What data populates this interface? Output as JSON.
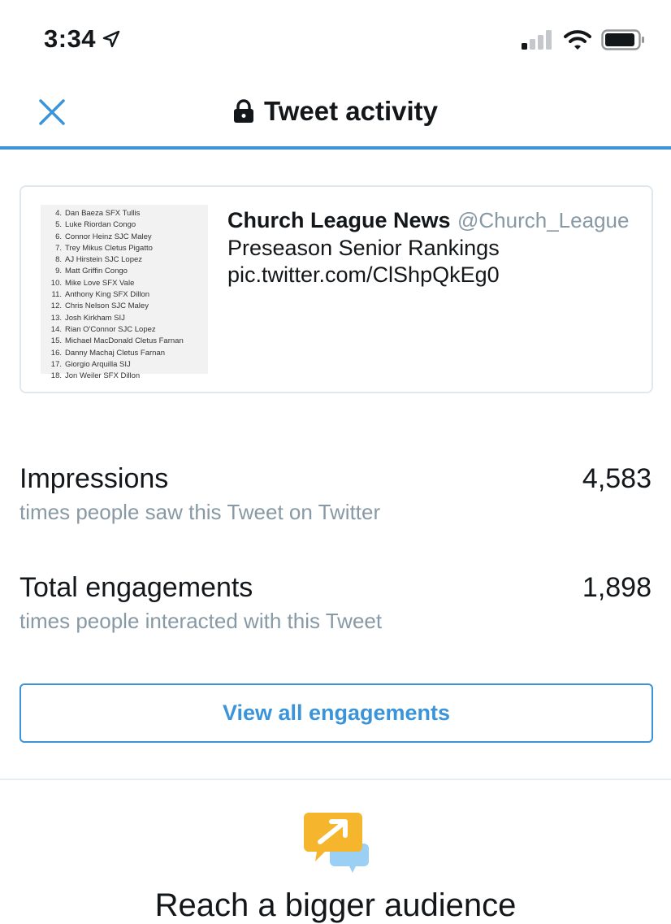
{
  "status_bar": {
    "time": "3:34"
  },
  "header": {
    "title": "Tweet activity"
  },
  "tweet": {
    "author": "Church League News",
    "handle": "@Church_League",
    "text_line1": "Preseason Senior Rankings",
    "text_line2": "pic.twitter.com/ClShpQkEg0",
    "thumbnail_rows": [
      {
        "num": "4.",
        "text": "Dan Baeza SFX Tullis"
      },
      {
        "num": "5.",
        "text": "Luke Riordan Congo"
      },
      {
        "num": "6.",
        "text": "Connor Heinz SJC Maley"
      },
      {
        "num": "7.",
        "text": "Trey Mikus Cletus Pigatto"
      },
      {
        "num": "8.",
        "text": "AJ Hirstein SJC Lopez"
      },
      {
        "num": "9.",
        "text": "Matt Griffin Congo"
      },
      {
        "num": "10.",
        "text": "Mike Love SFX Vale"
      },
      {
        "num": "11.",
        "text": "Anthony King SFX Dillon"
      },
      {
        "num": "12.",
        "text": "Chris Nelson SJC Maley"
      },
      {
        "num": "13.",
        "text": "Josh Kirkham SIJ"
      },
      {
        "num": "14.",
        "text": "Rian O'Connor SJC Lopez"
      },
      {
        "num": "15.",
        "text": "Michael MacDonald Cletus Farnan"
      },
      {
        "num": "16.",
        "text": "Danny Machaj Cletus Farnan"
      },
      {
        "num": "17.",
        "text": "Giorgio Arquilla SIJ"
      },
      {
        "num": "18.",
        "text": "Jon Weiler SFX Dillon"
      }
    ]
  },
  "stats": {
    "impressions": {
      "label": "Impressions",
      "sub": "times people saw this Tweet on Twitter",
      "value": "4,583"
    },
    "engagements": {
      "label": "Total engagements",
      "sub": "times people interacted with this Tweet",
      "value": "1,898"
    }
  },
  "view_all_label": "View all engagements",
  "promo": {
    "title": "Reach a bigger audience"
  },
  "colors": {
    "accent": "#3b94d9",
    "secondary_text": "#8899a6",
    "promo_yellow": "#f5b52d",
    "promo_blue": "#9ccff4"
  },
  "icons": [
    "location-arrow-icon",
    "signal-icon",
    "wifi-icon",
    "battery-icon",
    "close-icon",
    "lock-icon",
    "promote-icon"
  ]
}
